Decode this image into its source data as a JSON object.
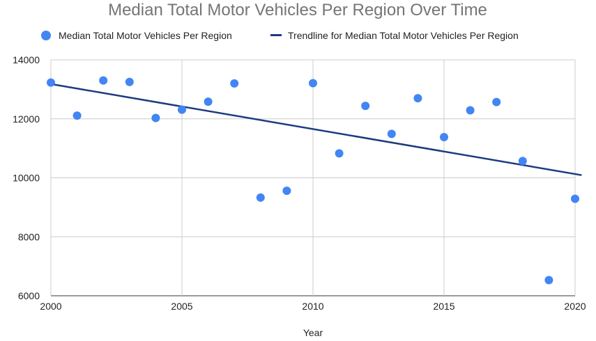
{
  "chart_data": {
    "type": "scatter",
    "title": "Median Total Motor Vehicles Per Region Over Time",
    "xlabel": "Year",
    "ylabel": "",
    "xlim": [
      2000,
      2020
    ],
    "ylim": [
      6000,
      14000
    ],
    "x_ticks": [
      "2000",
      "2005",
      "2010",
      "2015",
      "2020"
    ],
    "y_ticks": [
      "6000",
      "8000",
      "10000",
      "12000",
      "14000"
    ],
    "grid": true,
    "legend_position": "top",
    "series": [
      {
        "name": "Median Total Motor Vehicles Per Region",
        "color": "#4285f4",
        "marker": "circle",
        "x": [
          2000,
          2001,
          2002,
          2003,
          2004,
          2005,
          2006,
          2007,
          2008,
          2009,
          2010,
          2011,
          2012,
          2013,
          2014,
          2015,
          2016,
          2017,
          2018,
          2019,
          2020
        ],
        "y": [
          13230,
          12110,
          13300,
          13250,
          12030,
          12310,
          12580,
          13200,
          9330,
          9560,
          13210,
          10830,
          12440,
          11490,
          12700,
          11380,
          12290,
          12570,
          10570,
          6530,
          9290
        ]
      }
    ],
    "trendline": {
      "name": "Trendline for Median Total Motor Vehicles Per Region",
      "color": "#1c3b80",
      "x": [
        2000,
        2020.25
      ],
      "y": [
        13180,
        10090
      ]
    }
  }
}
